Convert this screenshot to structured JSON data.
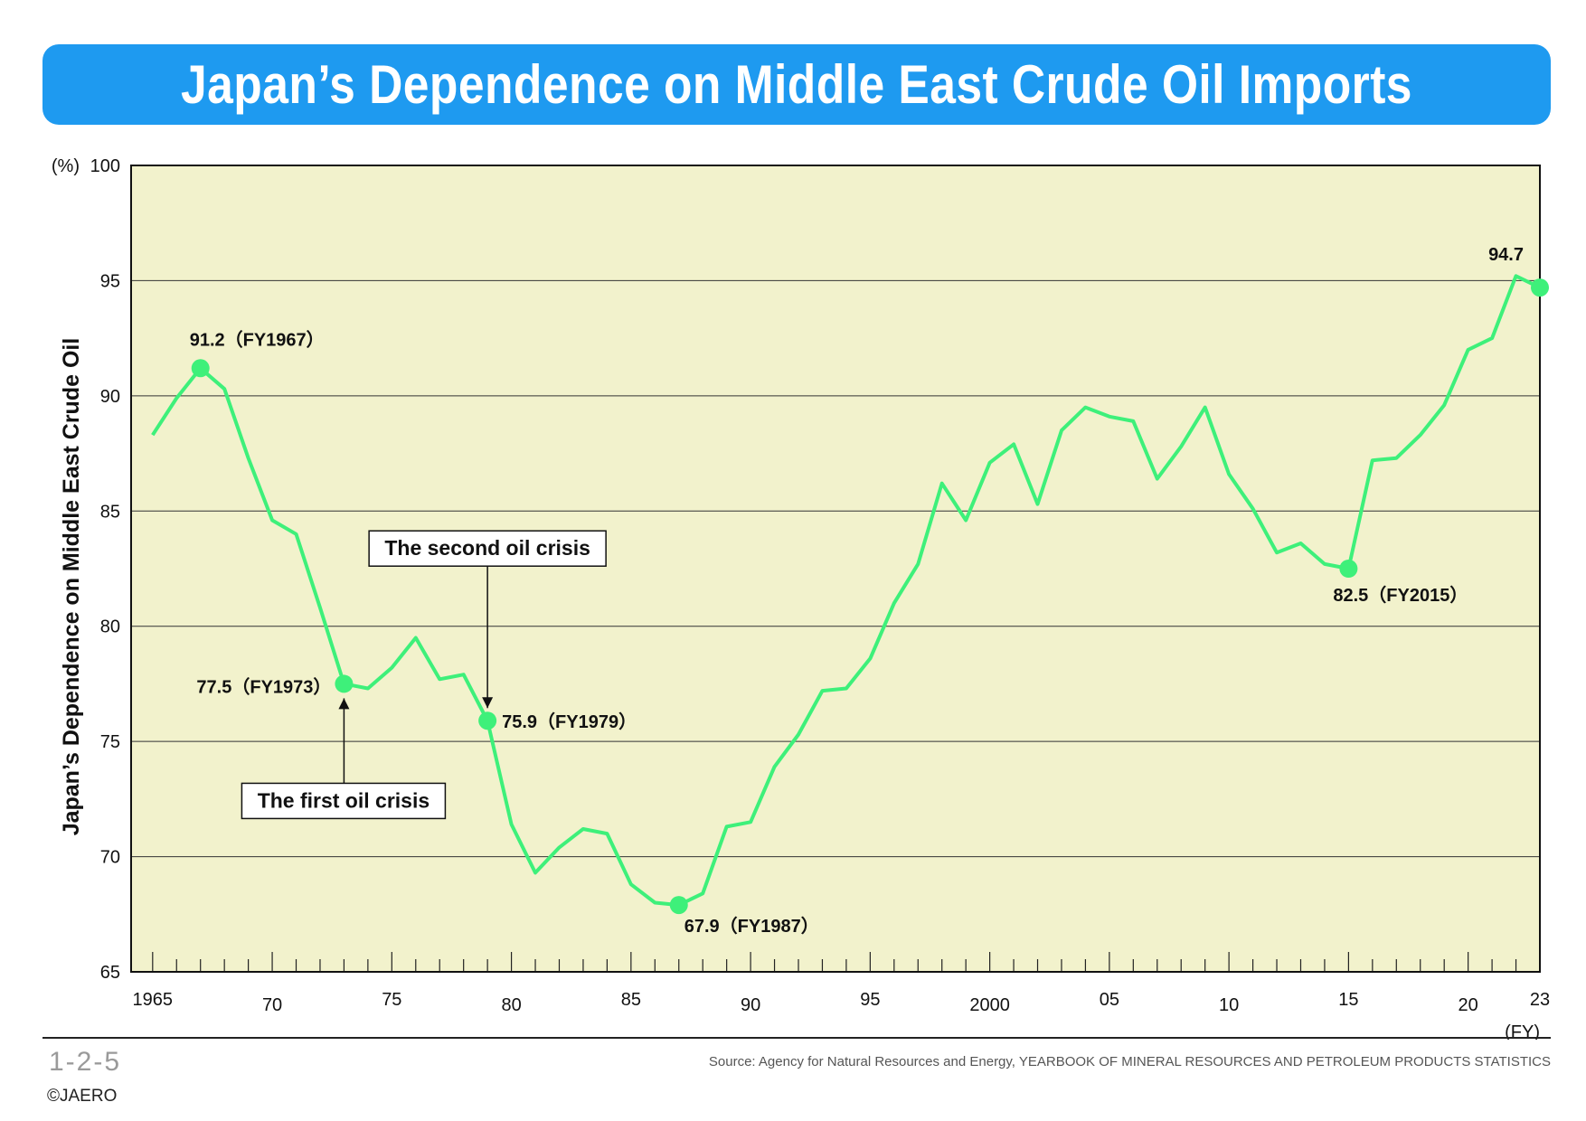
{
  "title": "Japan’s Dependence on Middle East Crude Oil Imports",
  "figure_number": "1-2-5",
  "copyright": "©JAERO",
  "source": "Source: Agency for Natural Resources and Energy, YEARBOOK OF MINERAL RESOURCES AND PETROLEUM PRODUCTS STATISTICS",
  "colors": {
    "title_bg": "#1e9af0",
    "plot_bg": "#f2f2cc",
    "line": "#3ef07a",
    "marker": "#3ef07a"
  },
  "chart_data": {
    "type": "line",
    "ylabel": "Japan’s Dependence on Middle East Crude Oil",
    "y_unit": "(%)",
    "x_unit": "(FY)",
    "xlim": [
      1964.1,
      2023
    ],
    "ylim": [
      65,
      100
    ],
    "grid": true,
    "y_ticks": [
      {
        "value": 65,
        "label": "65"
      },
      {
        "value": 70,
        "label": "70"
      },
      {
        "value": 75,
        "label": "75"
      },
      {
        "value": 80,
        "label": "80"
      },
      {
        "value": 85,
        "label": "85"
      },
      {
        "value": 90,
        "label": "90"
      },
      {
        "value": 95,
        "label": "95"
      },
      {
        "value": 100,
        "label": "100"
      }
    ],
    "x_ticks": [
      {
        "value": 1965,
        "label": "1965"
      },
      {
        "value": 1970,
        "label": "70"
      },
      {
        "value": 1975,
        "label": "75"
      },
      {
        "value": 1980,
        "label": "80"
      },
      {
        "value": 1985,
        "label": "85"
      },
      {
        "value": 1990,
        "label": "90"
      },
      {
        "value": 1995,
        "label": "95"
      },
      {
        "value": 2000,
        "label": "2000"
      },
      {
        "value": 2005,
        "label": "05"
      },
      {
        "value": 2010,
        "label": "10"
      },
      {
        "value": 2015,
        "label": "15"
      },
      {
        "value": 2020,
        "label": "20"
      },
      {
        "value": 2023,
        "label": "23"
      }
    ],
    "series": [
      {
        "x": [
          1965,
          1966,
          1967,
          1968,
          1969,
          1970,
          1971,
          1972,
          1973,
          1974,
          1975,
          1976,
          1977,
          1978,
          1979,
          1980,
          1981,
          1982,
          1983,
          1984,
          1985,
          1986,
          1987,
          1988,
          1989,
          1990,
          1991,
          1992,
          1993,
          1994,
          1995,
          1996,
          1997,
          1998,
          1999,
          2000,
          2001,
          2002,
          2003,
          2004,
          2005,
          2006,
          2007,
          2008,
          2009,
          2010,
          2011,
          2012,
          2013,
          2014,
          2015,
          2016,
          2017,
          2018,
          2019,
          2020,
          2021,
          2022,
          2023
        ],
        "y": [
          88.3,
          89.9,
          91.2,
          90.3,
          87.3,
          84.6,
          84.0,
          80.8,
          77.5,
          77.3,
          78.2,
          79.5,
          77.7,
          77.9,
          75.9,
          71.4,
          69.3,
          70.4,
          71.2,
          71.0,
          68.8,
          68.0,
          67.9,
          68.4,
          71.3,
          71.5,
          73.9,
          75.3,
          77.2,
          77.3,
          78.6,
          81.0,
          82.7,
          86.2,
          84.6,
          87.1,
          87.9,
          85.3,
          88.5,
          89.5,
          89.1,
          88.9,
          86.4,
          87.8,
          89.5,
          86.6,
          85.1,
          83.2,
          83.6,
          82.7,
          82.5,
          87.2,
          87.3,
          88.3,
          89.6,
          92.0,
          92.5,
          95.2,
          94.7
        ]
      }
    ],
    "highlight_points": [
      {
        "x": 1967,
        "y": 91.2,
        "label": "91.2（FY1967）"
      },
      {
        "x": 1973,
        "y": 77.5,
        "label": "77.5（FY1973）"
      },
      {
        "x": 1979,
        "y": 75.9,
        "label": "75.9（FY1979）"
      },
      {
        "x": 1987,
        "y": 67.9,
        "label": "67.9（FY1987）"
      },
      {
        "x": 2015,
        "y": 82.5,
        "label": "82.5（FY2015）"
      },
      {
        "x": 2023,
        "y": 94.7,
        "label": "94.7"
      }
    ],
    "annotations": [
      {
        "text": "The first oil crisis",
        "x": 1973,
        "y": 77.5
      },
      {
        "text": "The second oil crisis",
        "x": 1979,
        "y": 75.9
      }
    ]
  }
}
